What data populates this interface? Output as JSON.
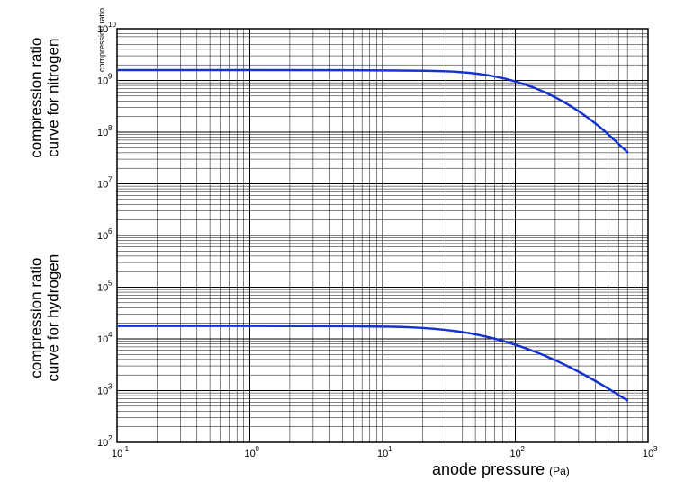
{
  "chart": {
    "type": "line-loglog",
    "background_color": "#ffffff",
    "grid_color": "#000000",
    "line_color": "#1432d2",
    "line_width": 2.5,
    "x_axis": {
      "label": "anode pressure",
      "unit": "(Pa)",
      "scale": "log",
      "min_exp": -1,
      "max_exp": 3,
      "tick_base_label": "10",
      "tick_exponents": [
        -1,
        0,
        1,
        2,
        3
      ],
      "label_fontsize": 18
    },
    "y_axis": {
      "title": "compression ratio",
      "title_fontsize": 9,
      "scale": "log",
      "min_exp": 2,
      "max_exp": 10,
      "tick_base_label": "10",
      "tick_exponents": [
        2,
        3,
        4,
        5,
        6,
        7,
        8,
        9,
        10
      ]
    },
    "side_labels": {
      "nitrogen": "compression ratio\ncurve for nitrogen",
      "hydrogen": "compression ratio\ncurve for hydrogen",
      "fontsize": 17
    },
    "series": [
      {
        "name": "nitrogen",
        "points_log10": [
          {
            "x": -1.0,
            "y": 9.2
          },
          {
            "x": 1.3,
            "y": 9.2
          },
          {
            "x": 1.7,
            "y": 9.15
          },
          {
            "x": 2.0,
            "y": 9.0
          },
          {
            "x": 2.3,
            "y": 8.7
          },
          {
            "x": 2.6,
            "y": 8.2
          },
          {
            "x": 2.85,
            "y": 7.6
          }
        ]
      },
      {
        "name": "hydrogen",
        "points_log10": [
          {
            "x": -1.0,
            "y": 4.25
          },
          {
            "x": 1.0,
            "y": 4.25
          },
          {
            "x": 1.4,
            "y": 4.2
          },
          {
            "x": 1.7,
            "y": 4.1
          },
          {
            "x": 2.0,
            "y": 3.9
          },
          {
            "x": 2.3,
            "y": 3.6
          },
          {
            "x": 2.6,
            "y": 3.2
          },
          {
            "x": 2.85,
            "y": 2.8
          }
        ]
      }
    ]
  }
}
